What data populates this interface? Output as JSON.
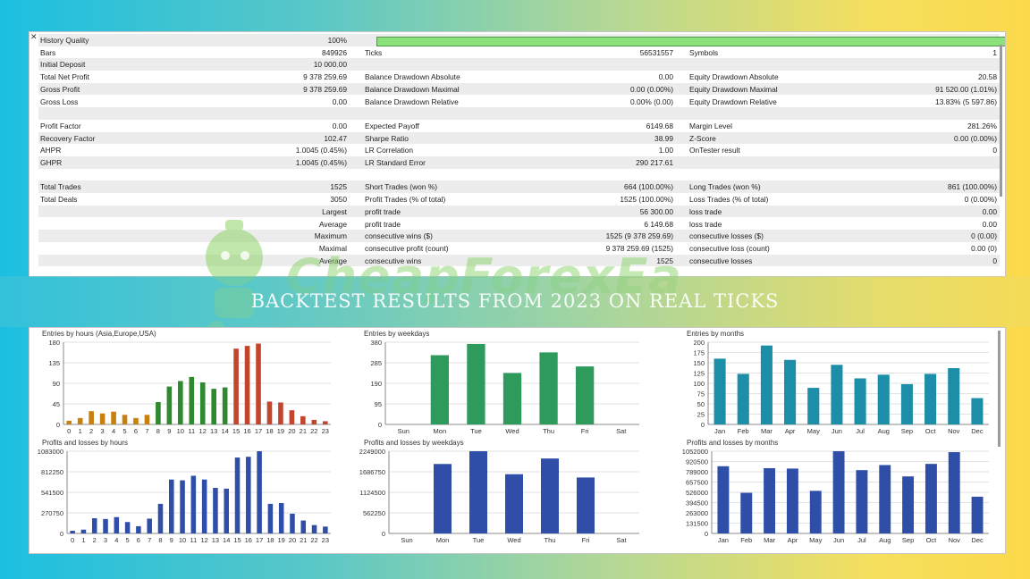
{
  "stats": {
    "rows": [
      {
        "shaded": true,
        "cells": [
          [
            "History Quality",
            "100%"
          ]
        ],
        "bar": true
      },
      {
        "shaded": false,
        "cells": [
          [
            "Bars",
            "849926"
          ],
          [
            "Ticks",
            "56531557"
          ],
          [
            "Symbols",
            "1"
          ]
        ]
      },
      {
        "shaded": true,
        "cells": [
          [
            "Initial Deposit",
            "10 000.00"
          ]
        ]
      },
      {
        "shaded": false,
        "cells": [
          [
            "Total Net Profit",
            "9 378 259.69"
          ],
          [
            "Balance Drawdown Absolute",
            "0.00"
          ],
          [
            "Equity Drawdown Absolute",
            "20.58"
          ]
        ]
      },
      {
        "shaded": true,
        "cells": [
          [
            "Gross Profit",
            "9 378 259.69"
          ],
          [
            "Balance Drawdown Maximal",
            "0.00 (0.00%)"
          ],
          [
            "Equity Drawdown Maximal",
            "91 520.00 (1.01%)"
          ]
        ]
      },
      {
        "shaded": false,
        "cells": [
          [
            "Gross Loss",
            "0.00"
          ],
          [
            "Balance Drawdown Relative",
            "0.00% (0.00)"
          ],
          [
            "Equity Drawdown Relative",
            "13.83% (5 597.86)"
          ]
        ]
      },
      {
        "shaded": true,
        "cells": []
      },
      {
        "shaded": false,
        "cells": [
          [
            "Profit Factor",
            "0.00"
          ],
          [
            "Expected Payoff",
            "6149.68"
          ],
          [
            "Margin Level",
            "281.26%"
          ]
        ]
      },
      {
        "shaded": true,
        "cells": [
          [
            "Recovery Factor",
            "102.47"
          ],
          [
            "Sharpe Ratio",
            "38.99"
          ],
          [
            "Z-Score",
            "0.00 (0.00%)"
          ]
        ]
      },
      {
        "shaded": false,
        "cells": [
          [
            "AHPR",
            "1.0045 (0.45%)"
          ],
          [
            "LR Correlation",
            "1.00"
          ],
          [
            "OnTester result",
            "0"
          ]
        ]
      },
      {
        "shaded": true,
        "cells": [
          [
            "GHPR",
            "1.0045 (0.45%)"
          ],
          [
            "LR Standard Error",
            "290 217.61"
          ]
        ]
      },
      {
        "shaded": false,
        "cells": []
      },
      {
        "shaded": true,
        "cells": [
          [
            "Total Trades",
            "1525"
          ],
          [
            "Short Trades (won %)",
            "664 (100.00%)"
          ],
          [
            "Long Trades (won %)",
            "861 (100.00%)"
          ]
        ]
      },
      {
        "shaded": false,
        "cells": [
          [
            "Total Deals",
            "3050"
          ],
          [
            "Profit Trades (% of total)",
            "1525 (100.00%)"
          ],
          [
            "Loss Trades (% of total)",
            "0 (0.00%)"
          ]
        ]
      },
      {
        "shaded": true,
        "cells": [
          [
            "",
            "Largest"
          ],
          [
            "profit trade",
            "56 300.00"
          ],
          [
            "loss trade",
            "0.00"
          ]
        ]
      },
      {
        "shaded": false,
        "cells": [
          [
            "",
            "Average"
          ],
          [
            "profit trade",
            "6 149.68"
          ],
          [
            "loss trade",
            "0.00"
          ]
        ]
      },
      {
        "shaded": true,
        "cells": [
          [
            "",
            "Maximum"
          ],
          [
            "consecutive wins ($)",
            "1525 (9 378 259.69)"
          ],
          [
            "consecutive losses ($)",
            "0 (0.00)"
          ]
        ]
      },
      {
        "shaded": false,
        "cells": [
          [
            "",
            "Maximal"
          ],
          [
            "consecutive profit (count)",
            "9 378 259.69 (1525)"
          ],
          [
            "consecutive loss (count)",
            "0.00 (0)"
          ]
        ]
      },
      {
        "shaded": true,
        "cells": [
          [
            "",
            "Average"
          ],
          [
            "consecutive wins",
            "1525"
          ],
          [
            "consecutive losses",
            "0"
          ]
        ]
      }
    ]
  },
  "watermark": "CheapForexEa",
  "banner": "BACKTEST RESULTS FROM 2023 ON REAL TICKS",
  "colors": {
    "orange": "#c8800e",
    "green": "#2f8a2f",
    "red": "#c2452e",
    "teal": "#1c8ea8",
    "blue": "#2f4ea8",
    "weekday_green": "#2e9a5c"
  },
  "chart_data": [
    {
      "type": "bar",
      "title": "Entries by hours (Asia,Europe,USA)",
      "categories": [
        "0",
        "1",
        "2",
        "3",
        "4",
        "5",
        "6",
        "7",
        "8",
        "9",
        "10",
        "11",
        "12",
        "13",
        "14",
        "15",
        "16",
        "17",
        "18",
        "19",
        "20",
        "21",
        "22",
        "23"
      ],
      "values": [
        8,
        14,
        29,
        24,
        28,
        21,
        14,
        21,
        49,
        83,
        95,
        104,
        92,
        78,
        81,
        166,
        172,
        177,
        50,
        48,
        31,
        18,
        10,
        7
      ],
      "yticks": [
        "0",
        "45",
        "90",
        "135",
        "180"
      ],
      "ylim": [
        0,
        180
      ]
    },
    {
      "type": "bar",
      "title": "Entries by weekdays",
      "categories": [
        "Sun",
        "Mon",
        "Tue",
        "Wed",
        "Thu",
        "Fri",
        "Sat"
      ],
      "values": [
        0,
        320,
        372,
        238,
        333,
        268,
        0
      ],
      "yticks": [
        "0",
        "95",
        "190",
        "285",
        "380"
      ],
      "ylim": [
        0,
        380
      ]
    },
    {
      "type": "bar",
      "title": "Entries by months",
      "categories": [
        "Jan",
        "Feb",
        "Mar",
        "Apr",
        "May",
        "Jun",
        "Jul",
        "Aug",
        "Sep",
        "Oct",
        "Nov",
        "Dec"
      ],
      "values": [
        160,
        123,
        192,
        157,
        89,
        145,
        112,
        121,
        98,
        123,
        137,
        64
      ],
      "yticks": [
        "0",
        "25",
        "50",
        "75",
        "100",
        "125",
        "150",
        "175",
        "200"
      ],
      "ylim": [
        0,
        200
      ]
    },
    {
      "type": "bar",
      "title": "Profits and losses by hours",
      "categories": [
        "0",
        "1",
        "2",
        "3",
        "4",
        "5",
        "6",
        "7",
        "8",
        "9",
        "10",
        "11",
        "12",
        "13",
        "14",
        "15",
        "16",
        "17",
        "18",
        "19",
        "20",
        "21",
        "22",
        "23"
      ],
      "values": [
        35000,
        50000,
        200000,
        190000,
        215000,
        150000,
        95000,
        195000,
        390000,
        710000,
        700000,
        760000,
        710000,
        600000,
        590000,
        1000000,
        1010000,
        1083000,
        390000,
        400000,
        260000,
        170000,
        110000,
        90000
      ],
      "yticks": [
        "0",
        "270750",
        "541500",
        "812250",
        "1083000"
      ],
      "ylim": [
        0,
        1083000
      ]
    },
    {
      "type": "bar",
      "title": "Profits and losses by weekdays",
      "categories": [
        "Sun",
        "Mon",
        "Tue",
        "Wed",
        "Thu",
        "Fri",
        "Sat"
      ],
      "values": [
        0,
        1900000,
        2249000,
        1620000,
        2050000,
        1530000,
        0
      ],
      "yticks": [
        "0",
        "562250",
        "1124500",
        "1686750",
        "2249000"
      ],
      "ylim": [
        0,
        2249000
      ]
    },
    {
      "type": "bar",
      "title": "Profits and losses by months",
      "categories": [
        "Jan",
        "Feb",
        "Mar",
        "Apr",
        "May",
        "Jun",
        "Jul",
        "Aug",
        "Sep",
        "Oct",
        "Nov",
        "Dec"
      ],
      "values": [
        860000,
        520000,
        835000,
        830000,
        545000,
        1052000,
        810000,
        875000,
        730000,
        890000,
        1040000,
        470000
      ],
      "yticks": [
        "0",
        "131500",
        "263000",
        "394500",
        "526000",
        "657500",
        "789000",
        "920500",
        "1052000"
      ],
      "ylim": [
        0,
        1052000
      ]
    }
  ]
}
